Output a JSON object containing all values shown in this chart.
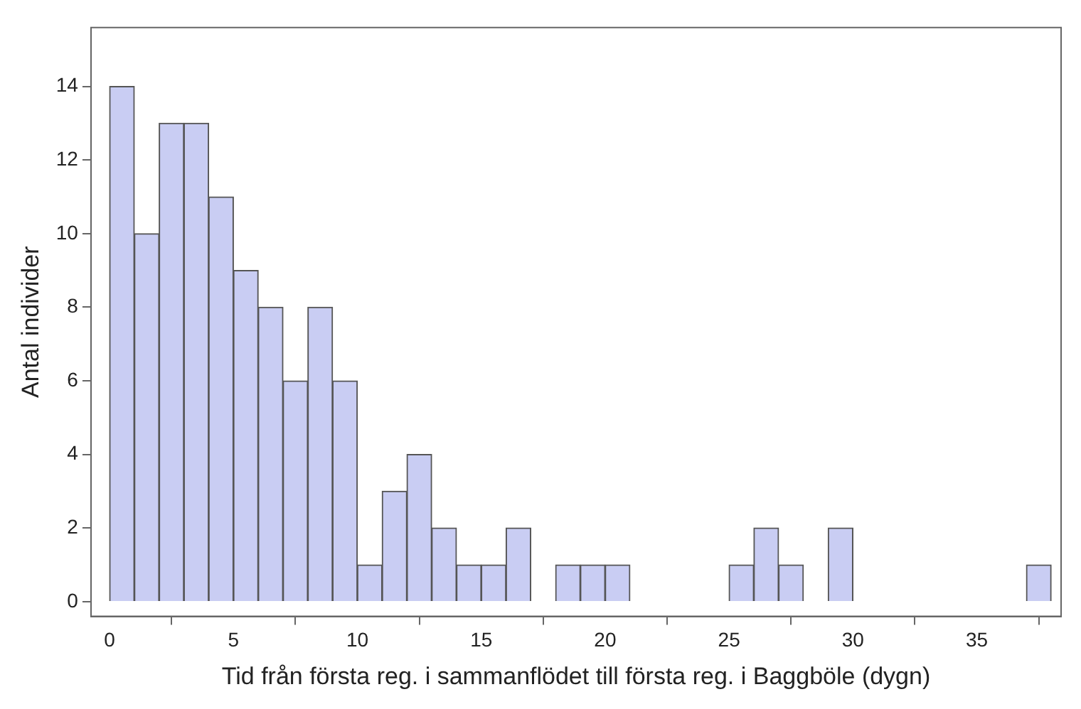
{
  "chart_data": {
    "type": "histogram",
    "xlabel": "Tid från första reg. i sammanflödet till första reg. i Baggböle (dygn)",
    "ylabel": "Antal individer",
    "bins": [
      0,
      1,
      2,
      3,
      4,
      5,
      6,
      7,
      8,
      9,
      10,
      11,
      12,
      13,
      14,
      15,
      16,
      17,
      18,
      19,
      20,
      21,
      22,
      23,
      24,
      25,
      26,
      27,
      28,
      29,
      30,
      31,
      32,
      33,
      34,
      35,
      36,
      37,
      38
    ],
    "values": [
      14,
      10,
      13,
      13,
      11,
      9,
      8,
      6,
      8,
      6,
      1,
      3,
      4,
      2,
      1,
      1,
      2,
      0,
      1,
      1,
      1,
      0,
      0,
      0,
      0,
      1,
      2,
      1,
      0,
      2,
      0,
      0,
      0,
      0,
      0,
      0,
      0,
      1
    ],
    "color": "#c9cdf3",
    "xlim": [
      -0.75,
      38.4
    ],
    "xticks": [
      0,
      5,
      10,
      15,
      20,
      25,
      30,
      35
    ],
    "ylim": [
      -0.4,
      15.6
    ],
    "yticks": [
      0,
      2,
      4,
      6,
      8,
      10,
      12,
      14
    ],
    "grid": false,
    "legend": false
  }
}
